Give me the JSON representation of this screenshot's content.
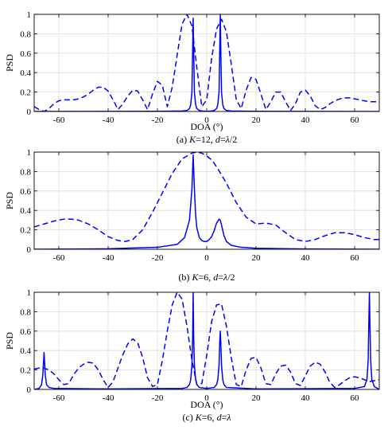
{
  "chart_data": [
    {
      "type": "line",
      "caption": {
        "label": "(a) ",
        "v1": "K",
        "eq1": "=12,  ",
        "v2": "d",
        "eq2": "=",
        "v3": "λ",
        "rest": "/2"
      },
      "xlabel": "DOA (°)",
      "ylabel": "PSD",
      "xlim": [
        -70,
        70
      ],
      "ylim": [
        0,
        1
      ],
      "xticks": [
        -60,
        -40,
        -20,
        0,
        20,
        40,
        60
      ],
      "yticks": [
        0,
        0.2,
        0.4,
        0.6,
        0.8,
        1
      ],
      "ytick_labels": [
        "0",
        "0.2",
        "0.4",
        "0.6",
        "0.8",
        "1"
      ],
      "grid": true,
      "color": "#0000ff",
      "series": [
        {
          "style": "dashed",
          "x": [
            -70,
            -68,
            -66,
            -64,
            -62,
            -60,
            -58,
            -56,
            -54,
            -52,
            -50,
            -48,
            -46,
            -44,
            -42,
            -40,
            -38,
            -36,
            -34,
            -32,
            -30,
            -28,
            -26,
            -24,
            -22,
            -20,
            -18,
            -16,
            -14,
            -12,
            -10,
            -8,
            -6,
            -4,
            -2,
            0,
            2,
            4,
            6,
            8,
            10,
            12,
            14,
            16,
            18,
            20,
            22,
            24,
            26,
            28,
            30,
            32,
            34,
            36,
            38,
            40,
            42,
            44,
            46,
            48,
            50,
            52,
            54,
            56,
            58,
            60,
            62,
            64,
            66,
            68,
            70
          ],
          "y": [
            0.05,
            0.02,
            0.0,
            0.03,
            0.08,
            0.11,
            0.12,
            0.12,
            0.12,
            0.13,
            0.15,
            0.18,
            0.22,
            0.25,
            0.25,
            0.21,
            0.12,
            0.02,
            0.08,
            0.16,
            0.22,
            0.21,
            0.12,
            0.02,
            0.18,
            0.31,
            0.27,
            0.05,
            0.25,
            0.58,
            0.9,
            1.0,
            0.88,
            0.45,
            0.05,
            0.12,
            0.55,
            0.85,
            0.95,
            0.82,
            0.48,
            0.12,
            0.03,
            0.22,
            0.35,
            0.33,
            0.18,
            0.02,
            0.1,
            0.2,
            0.2,
            0.1,
            0.01,
            0.08,
            0.2,
            0.22,
            0.16,
            0.06,
            0.02,
            0.04,
            0.08,
            0.11,
            0.13,
            0.14,
            0.14,
            0.13,
            0.12,
            0.11,
            0.1,
            0.1,
            0.1
          ]
        },
        {
          "style": "solid",
          "x": [
            -70,
            -20,
            -10,
            -8,
            -7,
            -6.5,
            -6,
            -5.8,
            -5.5,
            -5.2,
            -5,
            -4.5,
            -4,
            -3,
            -2,
            0,
            2,
            3,
            4,
            4.5,
            5,
            5.2,
            5.5,
            5.8,
            6,
            6.5,
            7,
            8,
            10,
            20,
            70
          ],
          "y": [
            0.0,
            0.002,
            0.005,
            0.01,
            0.03,
            0.07,
            0.2,
            0.5,
            0.96,
            0.5,
            0.2,
            0.07,
            0.03,
            0.01,
            0.005,
            0.002,
            0.005,
            0.01,
            0.03,
            0.07,
            0.2,
            0.5,
            1.0,
            0.5,
            0.2,
            0.07,
            0.03,
            0.01,
            0.005,
            0.002,
            0.0
          ]
        }
      ]
    },
    {
      "type": "line",
      "caption": {
        "label": "(b) ",
        "v1": "K",
        "eq1": "=6,  ",
        "v2": "d",
        "eq2": "=",
        "v3": "λ",
        "rest": "/2"
      },
      "xlabel": "",
      "ylabel": "PSD",
      "xlim": [
        -70,
        70
      ],
      "ylim": [
        0,
        1
      ],
      "xticks": [
        -60,
        -40,
        -20,
        0,
        20,
        40,
        60
      ],
      "yticks": [
        0,
        0.2,
        0.4,
        0.6,
        0.8,
        1
      ],
      "ytick_labels": [
        "0",
        "0.2",
        "0.4",
        "0.6",
        "0.8",
        "1"
      ],
      "grid": true,
      "color": "#0000ff",
      "series": [
        {
          "style": "dashed",
          "x": [
            -70,
            -66,
            -62,
            -58,
            -55,
            -52,
            -48,
            -44,
            -40,
            -36,
            -33,
            -30,
            -26,
            -22,
            -18,
            -14,
            -10,
            -6,
            -4,
            -2,
            0,
            2,
            4,
            8,
            12,
            16,
            20,
            24,
            28,
            32,
            36,
            40,
            44,
            48,
            52,
            56,
            60,
            64,
            68,
            70
          ],
          "y": [
            0.23,
            0.26,
            0.29,
            0.31,
            0.31,
            0.3,
            0.26,
            0.2,
            0.13,
            0.09,
            0.08,
            0.1,
            0.2,
            0.38,
            0.58,
            0.78,
            0.93,
            0.99,
            1.0,
            0.99,
            0.96,
            0.92,
            0.85,
            0.68,
            0.48,
            0.33,
            0.26,
            0.27,
            0.25,
            0.17,
            0.1,
            0.08,
            0.1,
            0.14,
            0.17,
            0.17,
            0.15,
            0.12,
            0.1,
            0.1
          ]
        },
        {
          "style": "solid",
          "x": [
            -70,
            -40,
            -20,
            -12,
            -9,
            -7,
            -6,
            -5.5,
            -5,
            -4.5,
            -4,
            -3,
            -2,
            -1,
            0,
            1,
            2,
            3,
            4,
            5,
            5.5,
            6,
            7,
            8,
            10,
            14,
            20,
            40,
            70
          ],
          "y": [
            0.0,
            0.005,
            0.02,
            0.05,
            0.12,
            0.3,
            0.62,
            0.97,
            0.62,
            0.35,
            0.22,
            0.12,
            0.09,
            0.08,
            0.08,
            0.1,
            0.13,
            0.19,
            0.27,
            0.31,
            0.3,
            0.25,
            0.14,
            0.08,
            0.04,
            0.02,
            0.01,
            0.003,
            0.0
          ]
        }
      ]
    },
    {
      "type": "line",
      "caption": {
        "label": "(c) ",
        "v1": "K",
        "eq1": "=6,  ",
        "v2": "d",
        "eq2": "=",
        "v3": "λ",
        "rest": ""
      },
      "xlabel": "DOA (°)",
      "ylabel": "PSD",
      "xlim": [
        -70,
        70
      ],
      "ylim": [
        0,
        1
      ],
      "xticks": [
        -60,
        -40,
        -20,
        0,
        20,
        40,
        60
      ],
      "yticks": [
        0,
        0.2,
        0.4,
        0.6,
        0.8,
        1
      ],
      "ytick_labels": [
        "0",
        "0.2",
        "0.4",
        "0.6",
        "0.8",
        "1"
      ],
      "grid": true,
      "color": "#0000ff",
      "series": [
        {
          "style": "dashed",
          "x": [
            -70,
            -68,
            -66,
            -64,
            -62,
            -60,
            -58,
            -56,
            -54,
            -52,
            -50,
            -48,
            -46,
            -44,
            -42,
            -40,
            -38,
            -36,
            -34,
            -32,
            -30,
            -28,
            -26,
            -24,
            -22,
            -20,
            -18,
            -16,
            -14,
            -12,
            -10,
            -8,
            -6,
            -4,
            -2,
            0,
            2,
            4,
            6,
            8,
            10,
            12,
            14,
            16,
            18,
            20,
            22,
            24,
            26,
            28,
            30,
            32,
            34,
            36,
            38,
            40,
            42,
            44,
            46,
            48,
            50,
            52,
            54,
            56,
            58,
            60,
            62,
            64,
            66,
            68,
            70
          ],
          "y": [
            0.21,
            0.22,
            0.22,
            0.2,
            0.16,
            0.1,
            0.05,
            0.06,
            0.15,
            0.22,
            0.26,
            0.28,
            0.27,
            0.2,
            0.1,
            0.02,
            0.08,
            0.22,
            0.36,
            0.47,
            0.52,
            0.48,
            0.33,
            0.12,
            0.03,
            0.05,
            0.3,
            0.6,
            0.87,
            1.0,
            0.93,
            0.65,
            0.3,
            0.05,
            0.06,
            0.35,
            0.7,
            0.87,
            0.88,
            0.65,
            0.32,
            0.05,
            0.03,
            0.2,
            0.32,
            0.33,
            0.22,
            0.06,
            0.05,
            0.16,
            0.24,
            0.25,
            0.18,
            0.06,
            0.04,
            0.14,
            0.24,
            0.28,
            0.26,
            0.18,
            0.07,
            0.02,
            0.05,
            0.09,
            0.12,
            0.13,
            0.12,
            0.1,
            0.08,
            0.09,
            0.1
          ]
        },
        {
          "style": "solid",
          "x": [
            -70,
            -68,
            -67,
            -66.5,
            -66,
            -65.5,
            -65,
            -64,
            -62,
            -40,
            -10,
            -8,
            -7,
            -6.5,
            -6,
            -5.7,
            -5.5,
            -5.3,
            -5,
            -4.5,
            -4,
            -3,
            0,
            3,
            4,
            4.5,
            5,
            5.3,
            5.5,
            5.7,
            6,
            6.5,
            7,
            8,
            20,
            60,
            64,
            65,
            65.5,
            66,
            66.5,
            67,
            68,
            70
          ],
          "y": [
            0.0,
            0.01,
            0.05,
            0.15,
            0.38,
            0.15,
            0.05,
            0.02,
            0.01,
            0.005,
            0.01,
            0.02,
            0.05,
            0.1,
            0.25,
            0.55,
            1.0,
            0.55,
            0.25,
            0.1,
            0.05,
            0.02,
            0.01,
            0.02,
            0.05,
            0.1,
            0.25,
            0.5,
            0.6,
            0.5,
            0.25,
            0.1,
            0.05,
            0.02,
            0.005,
            0.01,
            0.03,
            0.1,
            0.3,
            1.0,
            0.3,
            0.1,
            0.03,
            0.0
          ]
        }
      ]
    }
  ]
}
